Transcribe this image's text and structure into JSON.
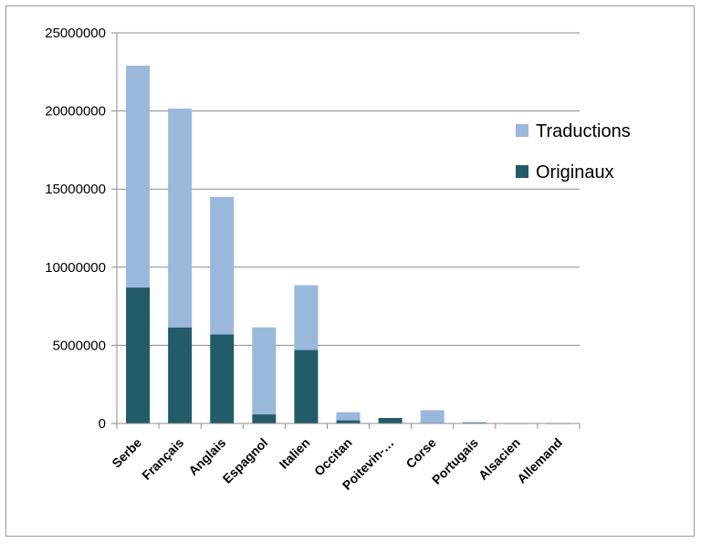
{
  "chart_data": {
    "type": "bar",
    "stacked": true,
    "title": "",
    "xlabel": "",
    "ylabel": "",
    "ylim": [
      0,
      25000000
    ],
    "yticks": [
      0,
      5000000,
      10000000,
      15000000,
      20000000,
      25000000
    ],
    "ytick_labels": [
      "0",
      "5000000",
      "10000000",
      "15000000",
      "20000000",
      "25000000"
    ],
    "categories": [
      "Serbe",
      "Français",
      "Anglais",
      "Espagnol",
      "Italien",
      "Occitan",
      "Poitevin-…",
      "Corse",
      "Portugais",
      "Alsacien",
      "Allemand"
    ],
    "series": [
      {
        "name": "Originaux",
        "color": "#225b6a",
        "values": [
          8700000,
          6150000,
          5700000,
          580000,
          4700000,
          200000,
          350000,
          0,
          60000,
          10000,
          10000
        ]
      },
      {
        "name": "Traductions",
        "color": "#9ab8dc",
        "values": [
          14200000,
          14000000,
          8800000,
          5570000,
          4150000,
          520000,
          0,
          850000,
          30000,
          10000,
          10000
        ]
      }
    ],
    "grid": true,
    "legend": "right",
    "legend_order": [
      "Traductions",
      "Originaux"
    ]
  }
}
